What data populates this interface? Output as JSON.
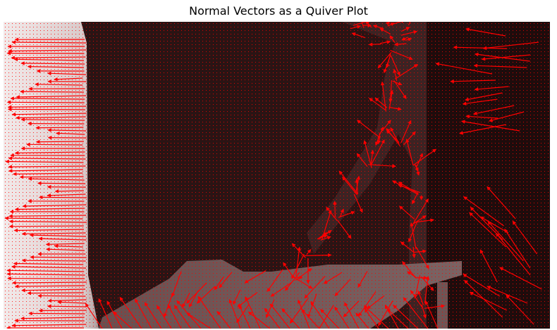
{
  "chart_data": {
    "type": "quiver",
    "title": "Normal Vectors as a Quiver Plot",
    "xlabel": "",
    "ylabel": "",
    "axes_visible": false,
    "grid": false,
    "legend": "none",
    "colors": {
      "arrows": "#ff0000",
      "depth_near": "#e8e0e0",
      "depth_far": "#1a0808"
    },
    "background": "depth image (grayscale) overlaid with surface-normal arrows sampled on a regular grid",
    "regions": [
      {
        "name": "left-wall",
        "depth": "near",
        "normals": "long arrows pointing left"
      },
      {
        "name": "back-wall",
        "depth": "far",
        "normals": "short dots"
      },
      {
        "name": "cabinet-edge",
        "depth": "mid",
        "normals": "radiating arrows along edges"
      },
      {
        "name": "table",
        "depth": "mid",
        "normals": "arrows pointing down-left"
      },
      {
        "name": "right-edge",
        "depth": "far",
        "normals": "long arrows pointing up-left"
      }
    ]
  }
}
